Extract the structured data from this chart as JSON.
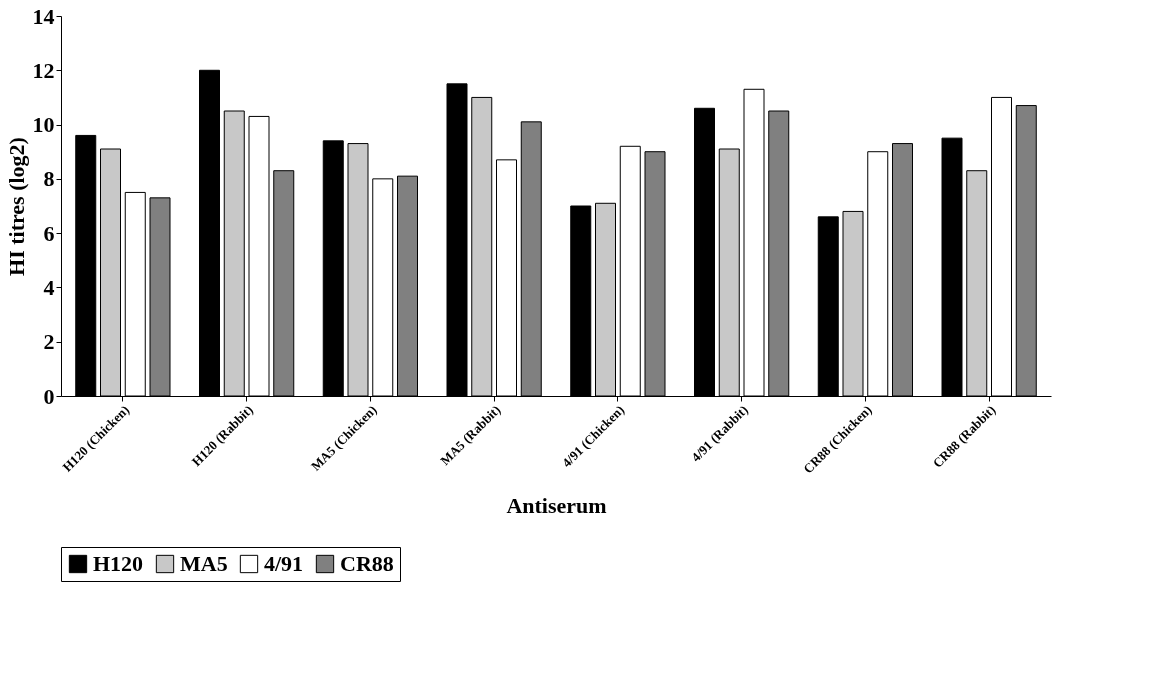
{
  "chart_data": {
    "type": "bar",
    "xlabel": "Antiserum",
    "ylabel": "HI titres (log2)",
    "categories": [
      "H120 (Chicken)",
      "H120 (Rabbit)",
      "MA5 (Chicken)",
      "MA5 (Rabbit)",
      "4/91 (Chicken)",
      "4/91 (Rabbit)",
      "CR88 (Chicken)",
      "CR88 (Rabbit)"
    ],
    "series": [
      {
        "name": "H120",
        "color": "#000000",
        "values": [
          9.6,
          12.0,
          9.4,
          11.5,
          7.0,
          10.6,
          6.6,
          9.5
        ]
      },
      {
        "name": "MA5",
        "color": "#c8c8c8",
        "values": [
          9.1,
          10.5,
          9.3,
          11.0,
          7.1,
          9.1,
          6.8,
          8.3
        ]
      },
      {
        "name": "4/91",
        "color": "#ffffff",
        "values": [
          7.5,
          10.3,
          8.0,
          8.7,
          9.2,
          11.3,
          9.0,
          11.0
        ]
      },
      {
        "name": "CR88",
        "color": "#808080",
        "values": [
          7.3,
          8.3,
          8.1,
          10.1,
          9.0,
          10.5,
          9.3,
          10.7
        ]
      }
    ],
    "ylim": [
      0,
      14
    ],
    "yticks": [
      0,
      2,
      4,
      6,
      8,
      10,
      12,
      14
    ],
    "grid": false,
    "legend": "bottom"
  }
}
